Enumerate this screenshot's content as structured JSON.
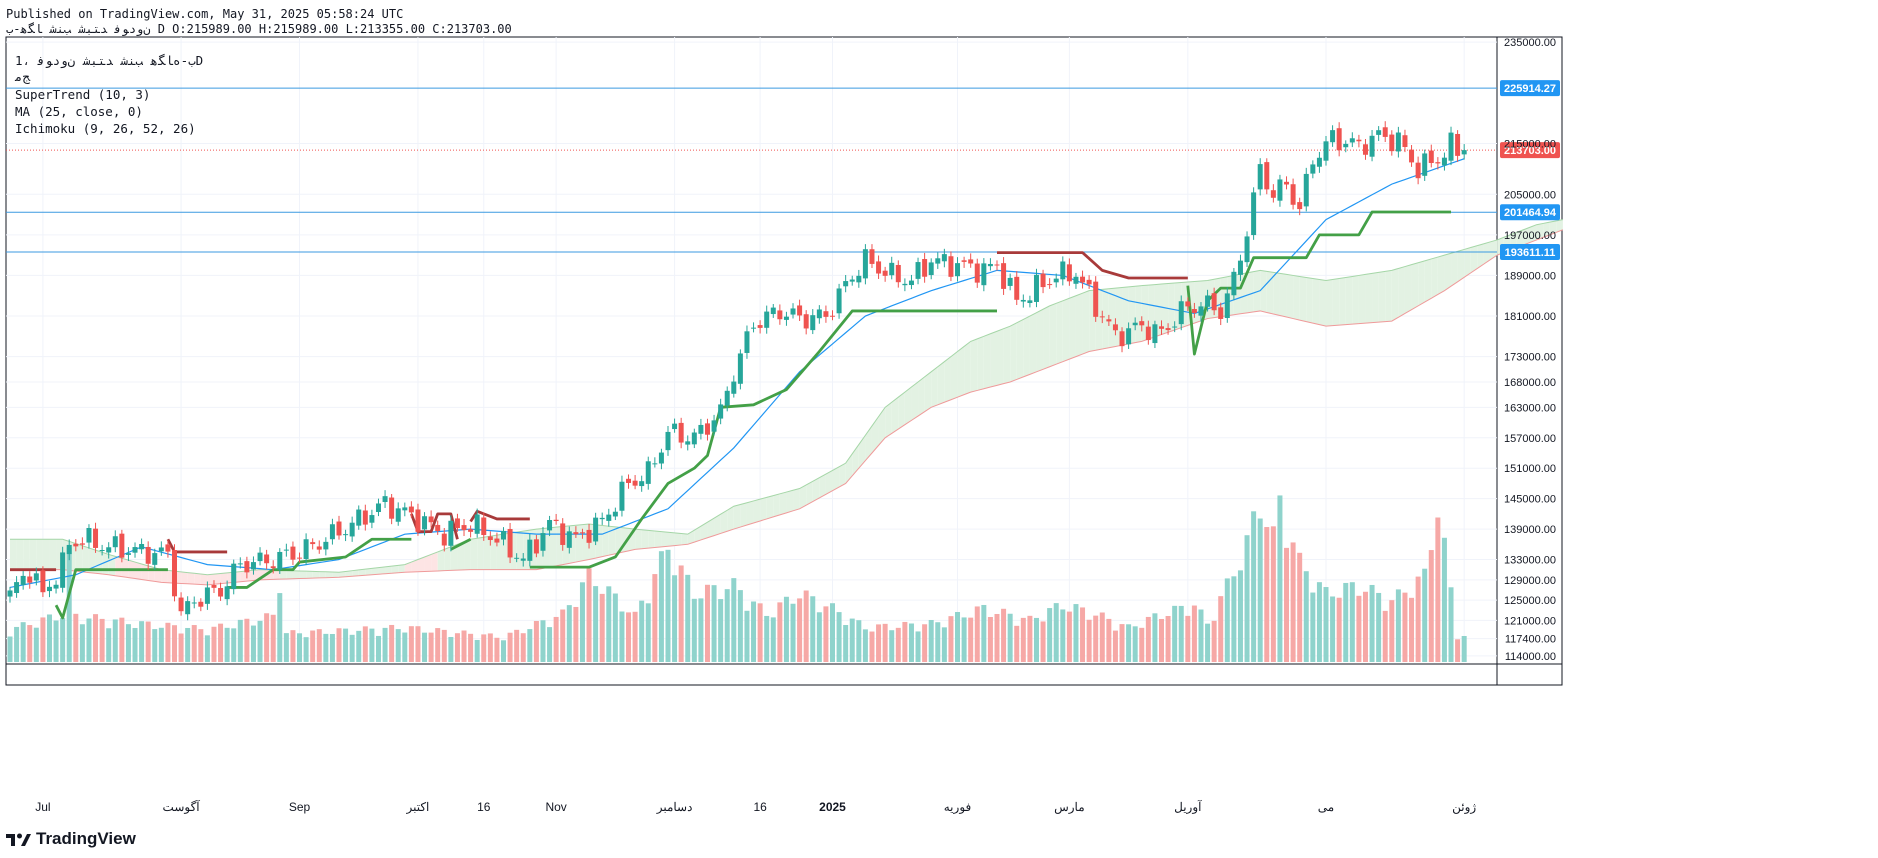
{
  "header": {
    "published": "Published on TradingView.com, May 31, 2025 05:58:24 UTC",
    "symbol": "ﻥﻭﺩﻮﻓ ﺪﺘﺒﺷ ﺐﻨﺷ ﺎﮕﻫ-ﺏ",
    "ohlc": "D O:215989.00 H:215989.00 L:213355.00 C:213703.00"
  },
  "legend": {
    "symbol_line": "ﺏ-ﻩﺎﮕﻫ ﺐﻨﺷ ﺪﺘﺒﺷ ﻥﻭﺩﻮﻓ ،1D",
    "sub_line": "ﺞﻣ",
    "indicators": [
      "SuperTrend (10, 3)",
      "MA (25, close, 0)",
      "Ichimoku (9, 26, 52, 26)"
    ]
  },
  "footer": {
    "brand": "TradingView"
  },
  "colors": {
    "up": "#26a69a",
    "down": "#ef5350",
    "supertrend_up": "#43a047",
    "supertrend_down": "#a83a3a",
    "ma": "#2196f3",
    "hline": "#3b9ae1",
    "cloud_green": "#e3f2e3",
    "cloud_red": "#fde4e4"
  },
  "chart_data": {
    "type": "candlestick",
    "title": "ﺏ-ﻩﺎﮕﻫ ﺐﻨﺷ ﺪﺘﺒﺷ ﻥﻭﺩﻮﻓ 1D",
    "ylim": [
      112800,
      236000
    ],
    "y_ticks": [
      235000,
      215000,
      205000,
      197000,
      189000,
      181000,
      173000,
      168000,
      163000,
      157000,
      151000,
      145000,
      139000,
      133000,
      129000,
      125000,
      121000,
      117400,
      114000
    ],
    "x_labels": [
      {
        "label": "Jul",
        "bar": 5
      },
      {
        "label": "آگوست",
        "bar": 26
      },
      {
        "label": "Sep",
        "bar": 44
      },
      {
        "label": "اکتبر",
        "bar": 62
      },
      {
        "label": "16",
        "bar": 72
      },
      {
        "label": "Nov",
        "bar": 83
      },
      {
        "label": "دسامبر",
        "bar": 101
      },
      {
        "label": "16",
        "bar": 114
      },
      {
        "label": "2025",
        "bar": 125
      },
      {
        "label": "فوریه",
        "bar": 144
      },
      {
        "label": "مارس",
        "bar": 161
      },
      {
        "label": "آوریل",
        "bar": 179
      },
      {
        "label": "می",
        "bar": 200
      },
      {
        "label": "ژوئن",
        "bar": 221
      }
    ],
    "price_lines": [
      {
        "value": 225914.27,
        "label": "225914.27",
        "color": "#2196f3"
      },
      {
        "value": 201464.94,
        "label": "201464.94",
        "color": "#2196f3"
      },
      {
        "value": 193611.11,
        "label": "193611.11",
        "color": "#2196f3"
      }
    ],
    "last_price": {
      "value": 213703.0,
      "label": "213703.00",
      "color": "#ef5350"
    },
    "candle_anchors": [
      [
        0,
        126000
      ],
      [
        3,
        131000
      ],
      [
        5,
        126000
      ],
      [
        8,
        132000
      ],
      [
        9,
        136000
      ],
      [
        11,
        137000
      ],
      [
        15,
        135500
      ],
      [
        20,
        134500
      ],
      [
        24,
        134000
      ],
      [
        26,
        122000
      ],
      [
        28,
        125000
      ],
      [
        32,
        127000
      ],
      [
        35,
        132000
      ],
      [
        40,
        133000
      ],
      [
        44,
        134500
      ],
      [
        48,
        137000
      ],
      [
        52,
        140000
      ],
      [
        57,
        144000
      ],
      [
        62,
        141000
      ],
      [
        66,
        138000
      ],
      [
        70,
        140000
      ],
      [
        74,
        137000
      ],
      [
        78,
        133000
      ],
      [
        82,
        140000
      ],
      [
        86,
        137000
      ],
      [
        90,
        140500
      ],
      [
        94,
        148000
      ],
      [
        97,
        150000
      ],
      [
        100,
        158000
      ],
      [
        104,
        157000
      ],
      [
        108,
        162000
      ],
      [
        110,
        170000
      ],
      [
        113,
        179500
      ],
      [
        117,
        182000
      ],
      [
        120,
        180500
      ],
      [
        124,
        181000
      ],
      [
        128,
        189000
      ],
      [
        130,
        192000
      ],
      [
        134,
        189000
      ],
      [
        137,
        188000
      ],
      [
        140,
        192000
      ],
      [
        144,
        191000
      ],
      [
        148,
        190000
      ],
      [
        150,
        191000
      ],
      [
        153,
        184000
      ],
      [
        156,
        186500
      ],
      [
        159,
        189000
      ],
      [
        162,
        189500
      ],
      [
        165,
        183000
      ],
      [
        168,
        177000
      ],
      [
        172,
        179000
      ],
      [
        175,
        177500
      ],
      [
        178,
        182000
      ],
      [
        181,
        183500
      ],
      [
        184,
        182000
      ],
      [
        186,
        188000
      ],
      [
        188,
        198000
      ],
      [
        190,
        210000
      ],
      [
        192,
        205000
      ],
      [
        194,
        207000
      ],
      [
        196,
        202000
      ],
      [
        198,
        212000
      ],
      [
        201,
        216000
      ],
      [
        205,
        214500
      ],
      [
        208,
        216500
      ],
      [
        211,
        215500
      ],
      [
        214,
        210000
      ],
      [
        217,
        212000
      ],
      [
        219,
        214500
      ],
      [
        220,
        213703
      ]
    ],
    "volume_anchors": [
      [
        0,
        0.17
      ],
      [
        8,
        0.25
      ],
      [
        9,
        0.55
      ],
      [
        10,
        0.24
      ],
      [
        20,
        0.2
      ],
      [
        30,
        0.17
      ],
      [
        40,
        0.24
      ],
      [
        41,
        0.45
      ],
      [
        42,
        0.15
      ],
      [
        60,
        0.18
      ],
      [
        75,
        0.13
      ],
      [
        84,
        0.25
      ],
      [
        88,
        0.45
      ],
      [
        90,
        0.4
      ],
      [
        95,
        0.24
      ],
      [
        100,
        0.6
      ],
      [
        104,
        0.36
      ],
      [
        110,
        0.4
      ],
      [
        115,
        0.25
      ],
      [
        120,
        0.36
      ],
      [
        125,
        0.28
      ],
      [
        130,
        0.18
      ],
      [
        140,
        0.2
      ],
      [
        148,
        0.28
      ],
      [
        155,
        0.22
      ],
      [
        160,
        0.3
      ],
      [
        165,
        0.25
      ],
      [
        170,
        0.18
      ],
      [
        175,
        0.25
      ],
      [
        180,
        0.3
      ],
      [
        182,
        0.2
      ],
      [
        185,
        0.4
      ],
      [
        188,
        0.62
      ],
      [
        190,
        0.85
      ],
      [
        192,
        0.65
      ],
      [
        193,
        0.84
      ],
      [
        196,
        0.52
      ],
      [
        200,
        0.36
      ],
      [
        205,
        0.4
      ],
      [
        210,
        0.32
      ],
      [
        215,
        0.45
      ],
      [
        217,
        0.83
      ],
      [
        220,
        0.14
      ]
    ],
    "ma_anchors": [
      [
        0,
        127500
      ],
      [
        10,
        130000
      ],
      [
        20,
        135500
      ],
      [
        30,
        132000
      ],
      [
        40,
        131000
      ],
      [
        50,
        133000
      ],
      [
        60,
        138000
      ],
      [
        70,
        139000
      ],
      [
        80,
        138000
      ],
      [
        90,
        138000
      ],
      [
        100,
        143000
      ],
      [
        110,
        155000
      ],
      [
        120,
        170000
      ],
      [
        130,
        181000
      ],
      [
        140,
        186000
      ],
      [
        150,
        190000
      ],
      [
        160,
        189000
      ],
      [
        170,
        184000
      ],
      [
        180,
        181500
      ],
      [
        190,
        186000
      ],
      [
        200,
        200000
      ],
      [
        210,
        207000
      ],
      [
        221,
        212000
      ]
    ],
    "supertrend": [
      {
        "trend": "down",
        "points": [
          [
            0,
            131000
          ],
          [
            7,
            131000
          ]
        ]
      },
      {
        "trend": "up",
        "points": [
          [
            7,
            124000
          ],
          [
            8,
            121500
          ],
          [
            10,
            131000
          ],
          [
            24,
            131000
          ]
        ]
      },
      {
        "trend": "down",
        "points": [
          [
            24,
            137000
          ],
          [
            25,
            134500
          ],
          [
            33,
            134500
          ]
        ]
      },
      {
        "trend": "up",
        "points": [
          [
            33,
            127500
          ],
          [
            36,
            127500
          ],
          [
            40,
            131000
          ],
          [
            43,
            131000
          ],
          [
            44,
            132500
          ],
          [
            51,
            133500
          ],
          [
            55,
            137000
          ],
          [
            61,
            137000
          ]
        ]
      },
      {
        "trend": "down",
        "points": [
          [
            61,
            142000
          ],
          [
            62,
            138500
          ],
          [
            64,
            138500
          ],
          [
            65,
            142000
          ],
          [
            67,
            142000
          ],
          [
            68,
            137000
          ]
        ]
      },
      {
        "trend": "up",
        "points": [
          [
            67,
            135000
          ],
          [
            70,
            137000
          ]
        ]
      },
      {
        "trend": "down",
        "points": [
          [
            70,
            140500
          ],
          [
            71,
            142500
          ],
          [
            74,
            141000
          ],
          [
            79,
            141000
          ]
        ]
      },
      {
        "trend": "up",
        "points": [
          [
            79,
            131500
          ],
          [
            88,
            131500
          ],
          [
            92,
            133500
          ],
          [
            96,
            141000
          ],
          [
            100,
            148000
          ],
          [
            104,
            151000
          ],
          [
            106,
            153500
          ],
          [
            108,
            163000
          ],
          [
            113,
            163500
          ],
          [
            118,
            166500
          ],
          [
            123,
            174000
          ],
          [
            128,
            182000
          ],
          [
            150,
            182000
          ]
        ]
      },
      {
        "trend": "down",
        "points": [
          [
            150,
            193500
          ],
          [
            163,
            193500
          ],
          [
            166,
            190000
          ],
          [
            170,
            188500
          ],
          [
            179,
            188500
          ]
        ]
      },
      {
        "trend": "up",
        "points": [
          [
            179,
            187000
          ],
          [
            180,
            173500
          ],
          [
            182,
            184000
          ],
          [
            184,
            186500
          ],
          [
            187,
            186500
          ],
          [
            189,
            192500
          ],
          [
            197,
            192500
          ],
          [
            199,
            197000
          ],
          [
            205,
            197000
          ],
          [
            207,
            201500
          ],
          [
            219,
            201500
          ]
        ]
      }
    ],
    "cloud_upper_anchors": [
      [
        0,
        137000
      ],
      [
        8,
        137000
      ],
      [
        15,
        134000
      ],
      [
        23,
        131000
      ],
      [
        30,
        130000
      ],
      [
        38,
        131000
      ],
      [
        50,
        130500
      ],
      [
        60,
        132000
      ],
      [
        70,
        137000
      ],
      [
        80,
        139000
      ],
      [
        88,
        140000
      ],
      [
        95,
        139000
      ],
      [
        103,
        138000
      ],
      [
        110,
        143500
      ],
      [
        120,
        147000
      ],
      [
        127,
        152000
      ],
      [
        133,
        163000
      ],
      [
        140,
        170000
      ],
      [
        146,
        176000
      ],
      [
        152,
        179000
      ],
      [
        158,
        183000
      ],
      [
        164,
        186000
      ],
      [
        172,
        187000
      ],
      [
        182,
        188000
      ],
      [
        190,
        190000
      ],
      [
        200,
        188000
      ],
      [
        210,
        190000
      ],
      [
        218,
        193000
      ],
      [
        226,
        196000
      ],
      [
        232,
        199000
      ],
      [
        236,
        200000
      ]
    ],
    "cloud_lower_anchors": [
      [
        0,
        131000
      ],
      [
        8,
        131000
      ],
      [
        15,
        130000
      ],
      [
        23,
        128500
      ],
      [
        30,
        128000
      ],
      [
        38,
        129000
      ],
      [
        50,
        129500
      ],
      [
        60,
        130500
      ],
      [
        70,
        131000
      ],
      [
        80,
        131000
      ],
      [
        88,
        133000
      ],
      [
        95,
        135000
      ],
      [
        103,
        136000
      ],
      [
        110,
        139000
      ],
      [
        120,
        143000
      ],
      [
        127,
        148000
      ],
      [
        133,
        157000
      ],
      [
        140,
        163000
      ],
      [
        146,
        166000
      ],
      [
        152,
        168000
      ],
      [
        158,
        171000
      ],
      [
        164,
        174000
      ],
      [
        172,
        176000
      ],
      [
        182,
        180500
      ],
      [
        190,
        182000
      ],
      [
        200,
        179000
      ],
      [
        210,
        180000
      ],
      [
        218,
        186000
      ],
      [
        226,
        193000
      ],
      [
        232,
        196000
      ],
      [
        236,
        198000
      ]
    ]
  }
}
